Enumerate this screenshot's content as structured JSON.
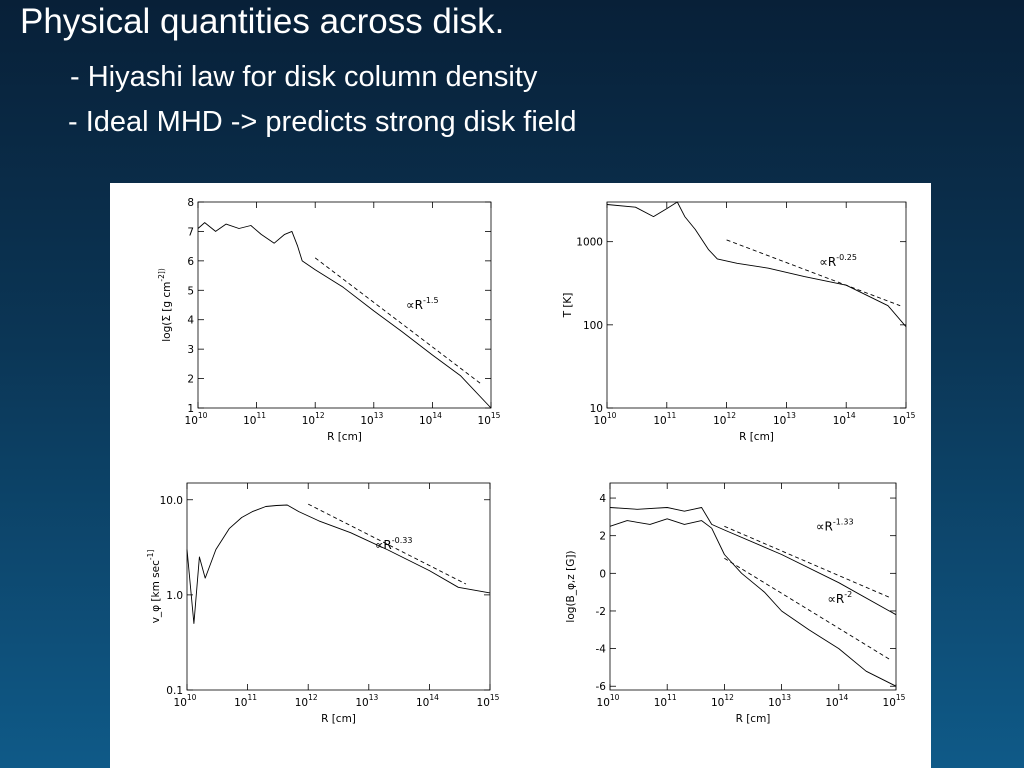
{
  "slide": {
    "title": "Physical quantities across disk.",
    "bullets": [
      "- Hiyashi law for disk column density",
      "- Ideal MHD -> predicts strong disk field"
    ]
  },
  "chart_data": [
    {
      "type": "line",
      "xlabel": "R [cm]",
      "ylabel": "log(Σ [g cm^-2])",
      "xscale": "log",
      "xlim": [
        10000000000.0,
        1000000000000000.0
      ],
      "ylim": [
        1,
        8
      ],
      "x_ticks": [
        "10^10",
        "10^11",
        "10^12",
        "10^13",
        "10^14",
        "10^15"
      ],
      "y_ticks": [
        "1",
        "2",
        "3",
        "4",
        "5",
        "6",
        "7",
        "8"
      ],
      "annotation": "∝R^-1.5",
      "series": [
        {
          "style": "solid",
          "x": [
            10000000000.0,
            13000000000.0,
            20000000000.0,
            30000000000.0,
            50000000000.0,
            80000000000.0,
            120000000000.0,
            200000000000.0,
            300000000000.0,
            400000000000.0,
            500000000000.0,
            600000000000.0,
            1000000000000.0,
            3000000000000.0,
            10000000000000.0,
            30000000000000.0,
            100000000000000.0,
            300000000000000.0,
            1000000000000000.0
          ],
          "y": [
            7.1,
            7.3,
            7.0,
            7.25,
            7.1,
            7.2,
            6.9,
            6.6,
            6.9,
            7.0,
            6.5,
            6.0,
            5.7,
            5.1,
            4.3,
            3.6,
            2.8,
            2.1,
            1.0
          ]
        },
        {
          "style": "dashed",
          "x": [
            1000000000000.0,
            700000000000000.0
          ],
          "y": [
            6.1,
            1.8
          ]
        }
      ]
    },
    {
      "type": "line",
      "xlabel": "R [cm]",
      "ylabel": "T [K]",
      "xscale": "log",
      "yscale": "log",
      "xlim": [
        10000000000.0,
        1000000000000000.0
      ],
      "ylim": [
        10,
        3000
      ],
      "x_ticks": [
        "10^10",
        "10^11",
        "10^12",
        "10^13",
        "10^14",
        "10^15"
      ],
      "y_ticks": [
        "10",
        "100",
        "1000"
      ],
      "annotation": "∝R^-0.25",
      "series": [
        {
          "style": "solid",
          "x": [
            10000000000.0,
            30000000000.0,
            60000000000.0,
            100000000000.0,
            150000000000.0,
            200000000000.0,
            300000000000.0,
            500000000000.0,
            700000000000.0,
            1500000000000.0,
            5000000000000.0,
            20000000000000.0,
            100000000000000.0,
            500000000000000.0,
            1000000000000000.0
          ],
          "y": [
            2800,
            2600,
            2000,
            2500,
            3000,
            2000,
            1400,
            800,
            620,
            550,
            480,
            380,
            300,
            170,
            95
          ]
        },
        {
          "style": "dashed",
          "x": [
            1000000000000.0,
            800000000000000.0
          ],
          "y": [
            1050,
            170
          ]
        }
      ]
    },
    {
      "type": "line",
      "xlabel": "R [cm]",
      "ylabel": "v_φ [km sec^-1]",
      "xscale": "log",
      "yscale": "log",
      "xlim": [
        10000000000.0,
        1000000000000000.0
      ],
      "ylim": [
        0.1,
        15
      ],
      "x_ticks": [
        "10^10",
        "10^11",
        "10^12",
        "10^13",
        "10^14",
        "10^15"
      ],
      "y_ticks": [
        "0.1",
        "1.0",
        "10.0"
      ],
      "annotation": "∝R^-0.33",
      "series": [
        {
          "style": "solid",
          "x": [
            10000000000.0,
            13000000000.0,
            16000000000.0,
            20000000000.0,
            30000000000.0,
            50000000000.0,
            80000000000.0,
            120000000000.0,
            200000000000.0,
            300000000000.0,
            450000000000.0,
            700000000000.0,
            1500000000000.0,
            5000000000000.0,
            20000000000000.0,
            100000000000000.0,
            300000000000000.0,
            1000000000000000.0
          ],
          "y": [
            3.0,
            0.5,
            2.5,
            1.5,
            3.0,
            5.0,
            6.5,
            7.5,
            8.5,
            8.7,
            8.8,
            7.5,
            6.0,
            4.5,
            3.0,
            1.8,
            1.2,
            1.05
          ]
        },
        {
          "style": "dashed",
          "x": [
            1000000000000.0,
            400000000000000.0
          ],
          "y": [
            9.0,
            1.3
          ]
        }
      ]
    },
    {
      "type": "line",
      "xlabel": "R [cm]",
      "ylabel": "log(B_φ,z [G])",
      "xscale": "log",
      "xlim": [
        10000000000.0,
        1000000000000000.0
      ],
      "ylim": [
        -6.2,
        4.8
      ],
      "x_ticks": [
        "10^10",
        "10^11",
        "10^12",
        "10^13",
        "10^14",
        "10^15"
      ],
      "y_ticks": [
        "4",
        "2",
        "0",
        "-2",
        "-4",
        "-6"
      ],
      "annotations": [
        "∝R^-1.33",
        "∝R^-2"
      ],
      "series": [
        {
          "style": "solid",
          "x": [
            10000000000.0,
            30000000000.0,
            100000000000.0,
            200000000000.0,
            400000000000.0,
            600000000000.0,
            1000000000000.0,
            10000000000000.0,
            100000000000000.0,
            1000000000000000.0
          ],
          "y": [
            3.5,
            3.4,
            3.5,
            3.3,
            3.5,
            2.6,
            2.3,
            1.0,
            -0.5,
            -2.2
          ]
        },
        {
          "style": "solid",
          "x": [
            10000000000.0,
            20000000000.0,
            50000000000.0,
            100000000000.0,
            200000000000.0,
            400000000000.0,
            600000000000.0,
            1000000000000.0,
            2000000000000.0,
            5000000000000.0,
            10000000000000.0,
            30000000000000.0,
            100000000000000.0,
            300000000000000.0,
            1000000000000000.0
          ],
          "y": [
            2.5,
            2.8,
            2.6,
            2.9,
            2.6,
            2.8,
            2.4,
            1.0,
            0.0,
            -1.0,
            -2.0,
            -3.0,
            -4.0,
            -5.2,
            -6.0
          ]
        },
        {
          "style": "dashed",
          "x": [
            1000000000000.0,
            800000000000000.0
          ],
          "y": [
            2.5,
            -1.3
          ]
        },
        {
          "style": "dashed",
          "x": [
            1000000000000.0,
            800000000000000.0
          ],
          "y": [
            0.8,
            -4.6
          ]
        }
      ]
    }
  ]
}
